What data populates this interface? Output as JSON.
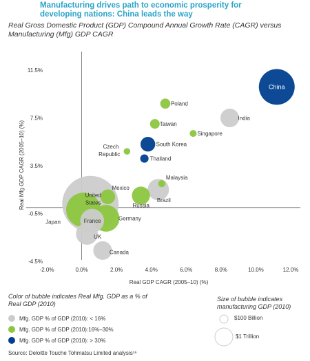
{
  "title": "Manufacturing drives path to economic prosperity for developing nations: China leads the way",
  "subtitle": "Real Gross Domestic Product (GDP) Compound Annual Growth Rate (CAGR) versus Manufacturing (Mfg) GDP CAGR",
  "chart_data": {
    "type": "scatter",
    "xlabel": "Real GDP CAGR (2005–10) (%)",
    "ylabel": "Real Mfg GDP CAGR (2005–10) (%)",
    "xlim": [
      -2.0,
      12.0
    ],
    "ylim": [
      -4.5,
      11.5
    ],
    "xticks": [
      "-2.0%",
      "0.0%",
      "2.0%",
      "4.0%",
      "6.0%",
      "8.0%",
      "10.0%",
      "12.0%"
    ],
    "yticks": [
      "11.5%",
      "7.5%",
      "3.5%",
      "-0.5%",
      "-4.5%"
    ],
    "colors": {
      "low": "#cccccc",
      "mid": "#8cc63f",
      "high": "#003f8f"
    },
    "points": [
      {
        "label": "China",
        "x": 11.2,
        "y": 10.1,
        "size": 5.9,
        "group": "high"
      },
      {
        "label": "Poland",
        "x": 4.8,
        "y": 8.7,
        "size": 0.47,
        "group": "mid"
      },
      {
        "label": "India",
        "x": 8.5,
        "y": 7.5,
        "size": 1.6,
        "group": "low"
      },
      {
        "label": "Taiwan",
        "x": 4.2,
        "y": 7.0,
        "size": 0.43,
        "group": "mid"
      },
      {
        "label": "Singapore",
        "x": 6.4,
        "y": 6.2,
        "size": 0.22,
        "group": "mid"
      },
      {
        "label": "South Korea",
        "x": 3.8,
        "y": 5.3,
        "size": 1.0,
        "group": "high"
      },
      {
        "label": "Czech Republic",
        "x": 2.6,
        "y": 4.7,
        "size": 0.2,
        "group": "mid"
      },
      {
        "label": "Thailand",
        "x": 3.6,
        "y": 4.1,
        "size": 0.32,
        "group": "high"
      },
      {
        "label": "Malaysia",
        "x": 4.6,
        "y": 2.0,
        "size": 0.24,
        "group": "mid"
      },
      {
        "label": "Brazil",
        "x": 4.4,
        "y": 1.5,
        "size": 2.1,
        "group": "low"
      },
      {
        "label": "Russia",
        "x": 3.4,
        "y": 1.0,
        "size": 1.5,
        "group": "mid"
      },
      {
        "label": "Mexico",
        "x": 1.5,
        "y": 0.9,
        "size": 1.0,
        "group": "mid"
      },
      {
        "label": "United States",
        "x": 0.5,
        "y": 0.3,
        "size": 14.6,
        "group": "low"
      },
      {
        "label": "Japan",
        "x": 0.1,
        "y": -0.2,
        "size": 5.5,
        "group": "mid"
      },
      {
        "label": "France",
        "x": 0.6,
        "y": -1.1,
        "size": 2.6,
        "group": "low"
      },
      {
        "label": "Germany",
        "x": 1.4,
        "y": -0.9,
        "size": 3.3,
        "group": "mid"
      },
      {
        "label": "UK",
        "x": 0.3,
        "y": -2.2,
        "size": 2.2,
        "group": "low"
      },
      {
        "label": "Canada",
        "x": 1.2,
        "y": -3.6,
        "size": 1.6,
        "group": "low"
      }
    ]
  },
  "legend": {
    "color_title": "Color of bubble indicates Real Mfg. GDP as a % of Real GDP (2010)",
    "color_items": [
      {
        "label": "Mfg. GDP % of GDP (2010): < 16%",
        "group": "low"
      },
      {
        "label": "Mfg. GDP % of GDP (2010):16%–30%",
        "group": "mid"
      },
      {
        "label": "Mfg. GDP % of GDP (2010): > 30%",
        "group": "high"
      }
    ],
    "size_title": "Size of bubble indicates manufacturing GDP (2010)",
    "size_items": [
      {
        "label": "$100 Billion",
        "value": 0.1
      },
      {
        "label": "$1 Trillion",
        "value": 1.0
      }
    ]
  },
  "source": "Source: Deloitte Touche Tohmatsu Limited analysis¹⁶"
}
